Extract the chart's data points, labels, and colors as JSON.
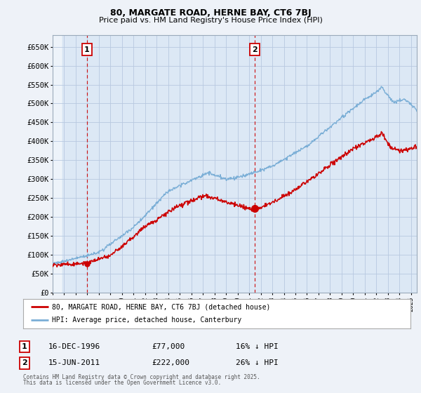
{
  "title_line1": "80, MARGATE ROAD, HERNE BAY, CT6 7BJ",
  "title_line2": "Price paid vs. HM Land Registry's House Price Index (HPI)",
  "bg_color": "#eef2f8",
  "plot_bg_color": "#dce8f5",
  "grid_color": "#b8c8e0",
  "hpi_color": "#7aaed6",
  "price_color": "#cc0000",
  "vline_color": "#cc0000",
  "yticks": [
    0,
    50000,
    100000,
    150000,
    200000,
    250000,
    300000,
    350000,
    400000,
    450000,
    500000,
    550000,
    600000,
    650000
  ],
  "ytick_labels": [
    "£0",
    "£50K",
    "£100K",
    "£150K",
    "£200K",
    "£250K",
    "£300K",
    "£350K",
    "£400K",
    "£450K",
    "£500K",
    "£550K",
    "£600K",
    "£650K"
  ],
  "xmin": 1994.0,
  "xmax": 2025.5,
  "ymin": 0,
  "ymax": 680000,
  "transaction1_x": 1996.96,
  "transaction1_y": 77000,
  "transaction2_x": 2011.46,
  "transaction2_y": 222000,
  "legend_entry1": "80, MARGATE ROAD, HERNE BAY, CT6 7BJ (detached house)",
  "legend_entry2": "HPI: Average price, detached house, Canterbury",
  "footnote_line1": "Contains HM Land Registry data © Crown copyright and database right 2025.",
  "footnote_line2": "This data is licensed under the Open Government Licence v3.0.",
  "annotation1_date": "16-DEC-1996",
  "annotation1_price": "£77,000",
  "annotation1_hpi": "16% ↓ HPI",
  "annotation2_date": "15-JUN-2011",
  "annotation2_price": "£222,000",
  "annotation2_hpi": "26% ↓ HPI"
}
